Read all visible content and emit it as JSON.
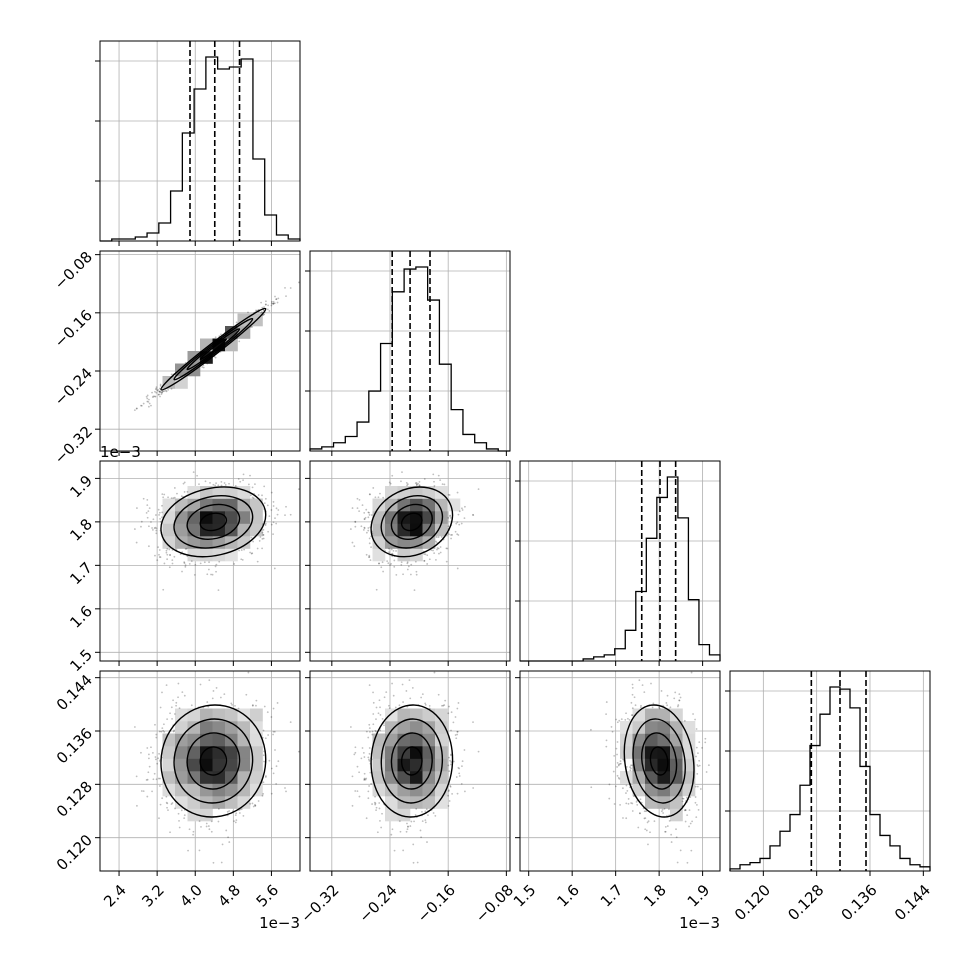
{
  "chart_data": {
    "type": "corner",
    "grid": true,
    "parameters": [
      {
        "range": [
          0.002,
          0.0062
        ],
        "ticks": [
          {
            "v": 0.0024,
            "label": "2.4"
          },
          {
            "v": 0.0032,
            "label": "3.2"
          },
          {
            "v": 0.004,
            "label": "4.0"
          },
          {
            "v": 0.0048,
            "label": "4.8"
          },
          {
            "v": 0.0056,
            "label": "5.6"
          }
        ],
        "offset_text": "1e−3",
        "mean": 0.00438,
        "sd": 0.00055,
        "quantiles": [
          0.00389,
          0.00441,
          0.00493
        ],
        "histogram": [
          0,
          1,
          1,
          2,
          4,
          9,
          25,
          54,
          76,
          92,
          86,
          87,
          91,
          41,
          13,
          3,
          1
        ]
      },
      {
        "range": [
          -0.35,
          -0.075
        ],
        "ticks": [
          {
            "v": -0.32,
            "label": "−0.32"
          },
          {
            "v": -0.24,
            "label": "−0.24"
          },
          {
            "v": -0.16,
            "label": "−0.16"
          },
          {
            "v": -0.08,
            "label": "−0.08"
          }
        ],
        "offset_text": "",
        "mean": -0.21,
        "sd": 0.028,
        "quantiles": [
          -0.237,
          -0.2124,
          -0.185
        ],
        "histogram": [
          1,
          2,
          4,
          7,
          14,
          29,
          52,
          77,
          88,
          89,
          73,
          42,
          20,
          8,
          4,
          1,
          0
        ]
      },
      {
        "range": [
          0.00148,
          0.00194
        ],
        "ticks": [
          {
            "v": 0.0015,
            "label": "1.5"
          },
          {
            "v": 0.0016,
            "label": "1.6"
          },
          {
            "v": 0.0017,
            "label": "1.7"
          },
          {
            "v": 0.0018,
            "label": "1.8"
          },
          {
            "v": 0.0019,
            "label": "1.9"
          }
        ],
        "offset_text": "1e−3",
        "mean": 0.0018,
        "sd": 4e-05,
        "quantiles": [
          0.00176,
          0.001802,
          0.001838
        ],
        "histogram": [
          0,
          0,
          0,
          0,
          0,
          0,
          1,
          2,
          3,
          6,
          15,
          34,
          60,
          80,
          90,
          70,
          30,
          8,
          3
        ]
      },
      {
        "range": [
          0.115,
          0.145
        ],
        "ticks": [
          {
            "v": 0.12,
            "label": "0.120"
          },
          {
            "v": 0.128,
            "label": "0.128"
          },
          {
            "v": 0.136,
            "label": "0.136"
          },
          {
            "v": 0.144,
            "label": "0.144"
          }
        ],
        "offset_text": "",
        "mean": 0.1315,
        "sd": 0.0042,
        "quantiles": [
          0.1272,
          0.1315,
          0.1354
        ],
        "histogram": [
          1,
          3,
          4,
          6,
          12,
          19,
          27,
          41,
          60,
          75,
          88,
          87,
          78,
          50,
          27,
          17,
          12,
          6,
          3,
          2
        ]
      }
    ],
    "correlations": [
      [
        1,
        0.985,
        0.2,
        0.03
      ],
      [
        0.985,
        1,
        0.2,
        0.03
      ],
      [
        0.2,
        0.2,
        1,
        -0.15
      ],
      [
        0.03,
        0.03,
        -0.15,
        1
      ]
    ],
    "colors": {
      "line": "#000000",
      "grid": "#b0b0b0",
      "points": "#000000"
    }
  }
}
